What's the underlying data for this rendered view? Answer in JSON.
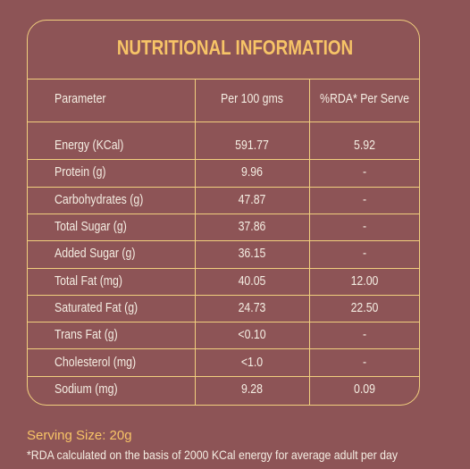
{
  "title": "NUTRITIONAL INFORMATION",
  "table": {
    "header": [
      "Parameter",
      "Per 100 gms",
      "%RDA* Per Serve"
    ],
    "rows": [
      [
        "Energy (KCal)",
        "591.77",
        "5.92"
      ],
      [
        "Protein (g)",
        "9.96",
        "-"
      ],
      [
        "Carbohydrates (g)",
        "47.87",
        "-"
      ],
      [
        "Total Sugar (g)",
        "37.86",
        "-"
      ],
      [
        "Added Sugar (g)",
        "36.15",
        "-"
      ],
      [
        "Total Fat (mg)",
        "40.05",
        "12.00"
      ],
      [
        "Saturated Fat (g)",
        "24.73",
        "22.50"
      ],
      [
        "Trans Fat (g)",
        "<0.10",
        "-"
      ],
      [
        "Cholesterol (mg)",
        "<1.0",
        "-"
      ],
      [
        "Sodium (mg)",
        "9.28",
        "0.09"
      ]
    ]
  },
  "serving_size": "Serving Size: 20g",
  "footnote": "*RDA calculated on the basis of 2000 KCal energy for average adult per day"
}
